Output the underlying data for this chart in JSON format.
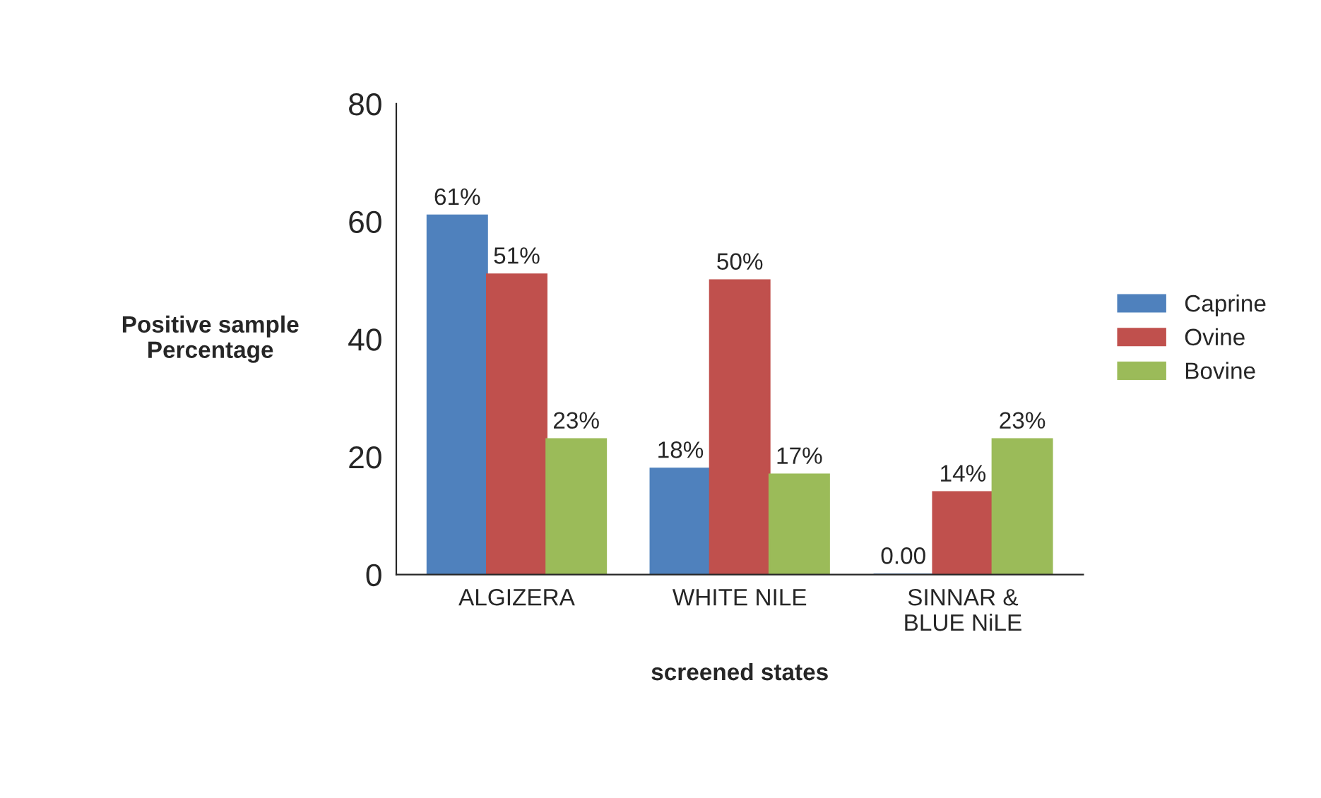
{
  "chart_data": {
    "type": "bar",
    "categories": [
      "ALGIZERA",
      "WHITE NILE",
      "SINNAR &\nBLUE NiLE"
    ],
    "series": [
      {
        "name": "Caprine",
        "color": "#4f81bd",
        "values": [
          61,
          18,
          0
        ],
        "value_labels": [
          "61%",
          "18%",
          "0.00"
        ]
      },
      {
        "name": "Ovine",
        "color": "#c0504d",
        "values": [
          51,
          50,
          14
        ],
        "value_labels": [
          "51%",
          "50%",
          "14%"
        ]
      },
      {
        "name": "Bovine",
        "color": "#9bbb59",
        "values": [
          23,
          17,
          23
        ],
        "value_labels": [
          "23%",
          "17%",
          "23%"
        ]
      }
    ],
    "xlabel": "screened states",
    "ylabel": "Positive sample\nPercentage",
    "ylim": [
      0,
      80
    ],
    "yticks": [
      0,
      20,
      40,
      60,
      80
    ],
    "grid": false,
    "legend": "right"
  }
}
